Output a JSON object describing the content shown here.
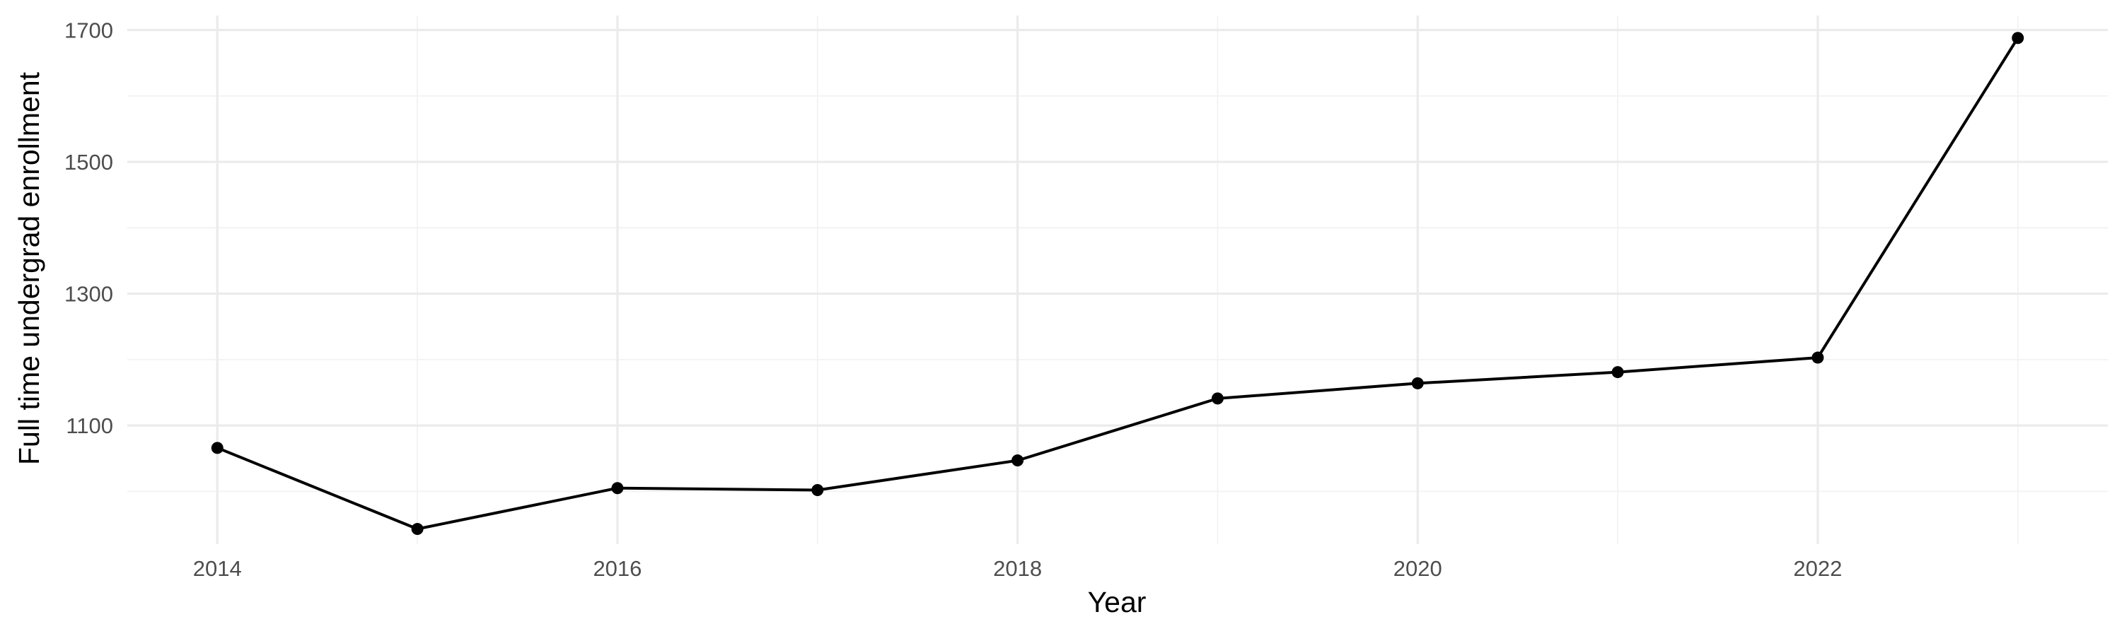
{
  "chart_data": {
    "type": "line",
    "title": "",
    "xlabel": "Year",
    "ylabel": "Full time undergrad enrollment",
    "x": [
      2014,
      2015,
      2016,
      2017,
      2018,
      2019,
      2020,
      2021,
      2022,
      2023
    ],
    "series": [
      {
        "values": [
          1066,
          943,
          1005,
          1002,
          1047,
          1141,
          1164,
          1181,
          1203,
          1688
        ]
      }
    ],
    "xlim": [
      2013.55,
      2023.45
    ],
    "ylim": [
      920,
      1722
    ],
    "x_ticks": [
      2014,
      2016,
      2018,
      2020,
      2022
    ],
    "x_minor_ticks": [
      2015,
      2017,
      2019,
      2021,
      2023
    ],
    "y_ticks": [
      1100,
      1300,
      1500,
      1700
    ],
    "y_minor_ticks": [
      1000,
      1200,
      1400,
      1600
    ],
    "grid": true,
    "legend": "none",
    "line_color": "#000000",
    "point_color": "#000000"
  }
}
